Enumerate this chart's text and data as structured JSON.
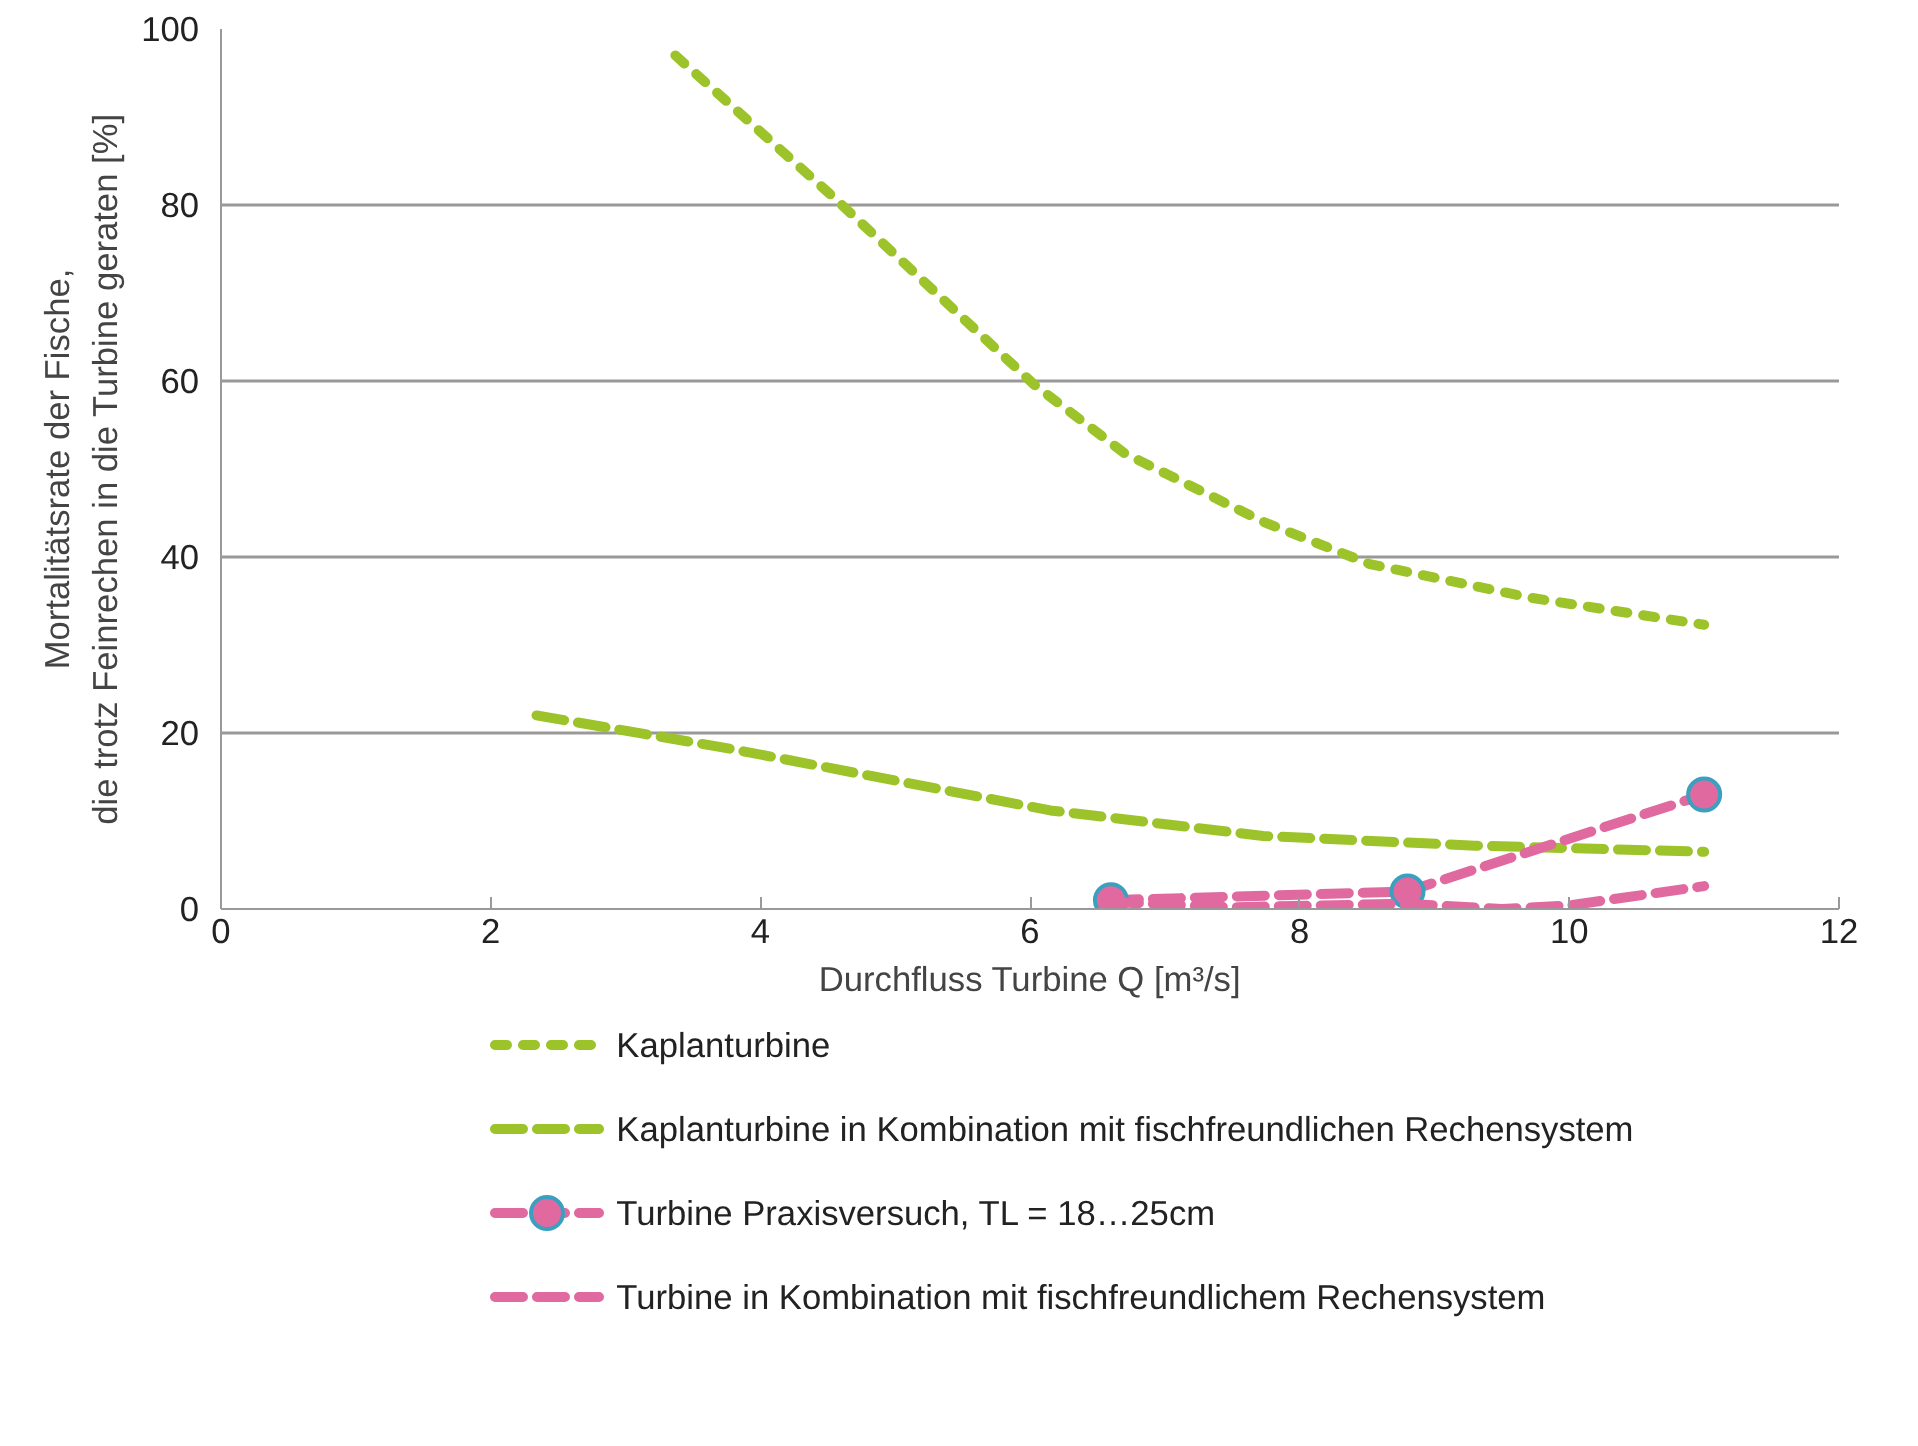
{
  "chart_data": {
    "type": "line",
    "xlabel": "Durchfluss Turbine Q [m³/s]",
    "ylabel": "Mortalitätsrate der Fische,\ndie trotz Feinrechen in die Turbine geraten [%]",
    "xlim": [
      0,
      12
    ],
    "xticks": [
      0,
      2,
      4,
      6,
      8,
      10,
      12
    ],
    "ylim": [
      0,
      100
    ],
    "yticks": [
      0,
      20,
      40,
      60,
      80,
      100
    ],
    "grid": "y",
    "legend": "bottom",
    "series": [
      {
        "name": "Kaplanturbine",
        "color": "#9dc32a",
        "line_style": "dotted",
        "marker": "none",
        "x": [
          3.37,
          4.57,
          6.03,
          6.7,
          7.73,
          8.52,
          9.7,
          11.0
        ],
        "values": [
          97,
          80.5,
          59.6,
          51.8,
          44,
          39.2,
          35.4,
          32.3
        ]
      },
      {
        "name": "Kaplanturbine in Kombination mit fischfreundlichen Rechensystem",
        "color": "#9dc32a",
        "line_style": "dashed",
        "marker": "none",
        "x": [
          2.34,
          3.78,
          6.15,
          7.73,
          9.3,
          11.0
        ],
        "values": [
          22,
          18.2,
          11.2,
          8.3,
          7.2,
          6.5
        ]
      },
      {
        "name": "Turbine Praxisversuch, TL = 18…25cm",
        "color": "#e06aa0",
        "line_style": "dashed",
        "marker": "circle",
        "x": [
          6.6,
          8.8,
          11.0
        ],
        "values": [
          1,
          2,
          13
        ]
      },
      {
        "name": "Turbine in Kombination mit fischfreundlichem Rechensystem",
        "color": "#e06aa0",
        "line_style": "dashed",
        "marker": "none",
        "x": [
          6.6,
          7.5,
          8.8,
          9.5,
          10.0,
          11.0
        ],
        "values": [
          0.8,
          0.2,
          0.6,
          0,
          0.4,
          2.6
        ]
      }
    ]
  }
}
